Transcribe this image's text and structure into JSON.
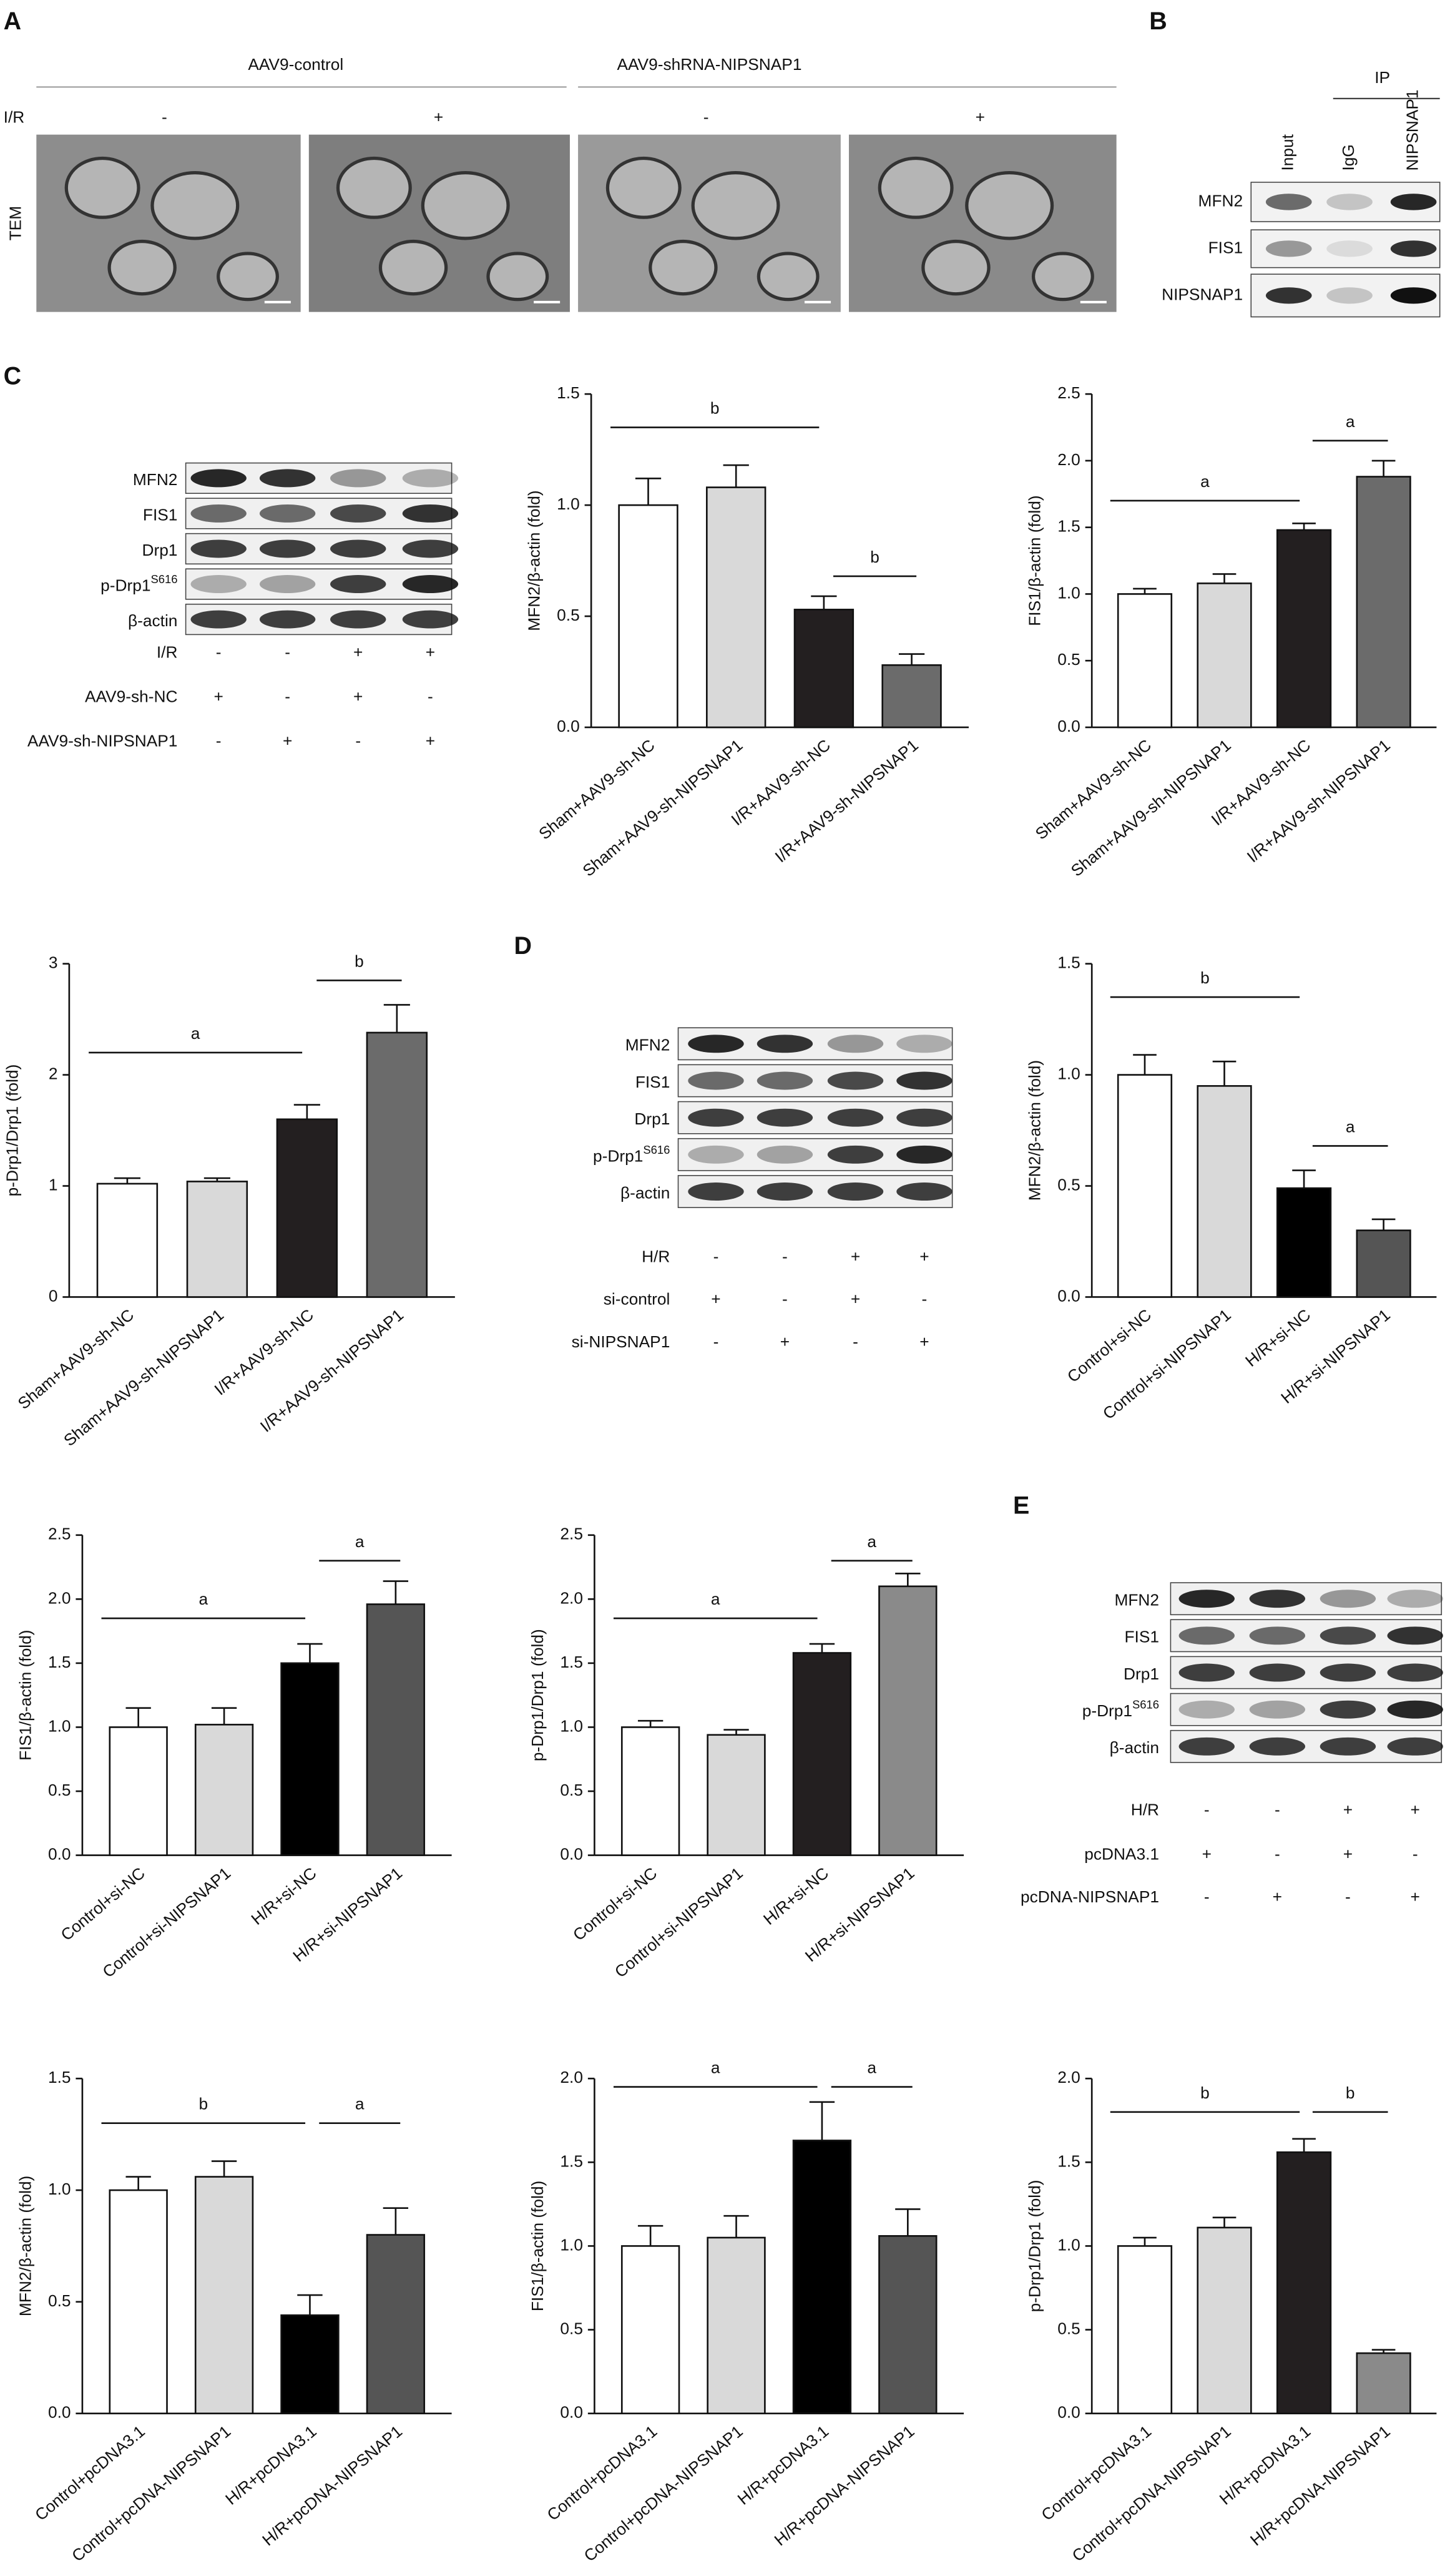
{
  "panel_letters": [
    "A",
    "B",
    "C",
    "D",
    "E"
  ],
  "panel_a": {
    "groups": [
      "AAV9-control",
      "AAV9-shRNA-NIPSNAP1"
    ],
    "row_label": "I/R",
    "signs": [
      "-",
      "+",
      "-",
      "+"
    ],
    "side_label": "TEM"
  },
  "panel_b": {
    "header": "IP",
    "columns": [
      "Input",
      "IgG",
      "NIPSNAP1"
    ],
    "rows": [
      "MFN2",
      "FIS1",
      "NIPSNAP1"
    ]
  },
  "blots": [
    {
      "rows": [
        "MFN2",
        "FIS1",
        "Drp1",
        {
          "text": "p-Drp1",
          "sup": "S616"
        },
        "β-actin"
      ],
      "conditions": [
        {
          "label": "I/R",
          "signs": [
            "-",
            "-",
            "+",
            "+"
          ]
        },
        {
          "label": "AAV9-sh-NC",
          "signs": [
            "+",
            "-",
            "+",
            "-"
          ]
        },
        {
          "label": "AAV9-sh-NIPSNAP1",
          "signs": [
            "-",
            "+",
            "-",
            "+"
          ]
        }
      ]
    },
    {
      "rows": [
        "MFN2",
        "FIS1",
        "Drp1",
        {
          "text": "p-Drp1",
          "sup": "S616"
        },
        "β-actin"
      ],
      "conditions": [
        {
          "label": "H/R",
          "signs": [
            "-",
            "-",
            "+",
            "+"
          ]
        },
        {
          "label": "si-control",
          "signs": [
            "+",
            "-",
            "+",
            "-"
          ]
        },
        {
          "label": "si-NIPSNAP1",
          "signs": [
            "-",
            "+",
            "-",
            "+"
          ]
        }
      ]
    },
    {
      "rows": [
        "MFN2",
        "FIS1",
        "Drp1",
        {
          "text": "p-Drp1",
          "sup": "S616"
        },
        "β-actin"
      ],
      "conditions": [
        {
          "label": "H/R",
          "signs": [
            "-",
            "-",
            "+",
            "+"
          ]
        },
        {
          "label": "pcDNA3.1",
          "signs": [
            "+",
            "-",
            "+",
            "-"
          ]
        },
        {
          "label": "pcDNA-NIPSNAP1",
          "signs": [
            "-",
            "+",
            "-",
            "+"
          ]
        }
      ]
    }
  ],
  "chart_data": [
    {
      "type": "bar",
      "y_label": "MFN2/β-actin (fold)",
      "categories": [
        "Sham+AAV9-sh-NC",
        "Sham+AAV9-sh-NIPSNAP1",
        "I/R+AAV9-sh-NC",
        "I/R+AAV9-sh-NIPSNAP1"
      ],
      "values": [
        1.0,
        1.08,
        0.53,
        0.28
      ],
      "errors": [
        0.12,
        0.1,
        0.06,
        0.05
      ],
      "colors": [
        "#ffffff",
        "#d9d9d9",
        "#231f20",
        "#6b6b6b"
      ],
      "ylim": [
        0,
        1.5
      ],
      "yticks": [
        {
          "value": 0,
          "label": "0.0"
        },
        0.5,
        {
          "value": 1,
          "label": "1.0"
        },
        1.5
      ],
      "annotations": [
        {
          "text": "b",
          "y": 1.35
        },
        {
          "text": "b",
          "y": 0.68
        }
      ]
    },
    {
      "type": "bar",
      "y_label": "FIS1/β-actin (fold)",
      "categories": [
        "Sham+AAV9-sh-NC",
        "Sham+AAV9-sh-NIPSNAP1",
        "I/R+AAV9-sh-NC",
        "I/R+AAV9-sh-NIPSNAP1"
      ],
      "values": [
        1.0,
        1.08,
        1.48,
        1.88
      ],
      "errors": [
        0.04,
        0.07,
        0.05,
        0.12
      ],
      "colors": [
        "#ffffff",
        "#d9d9d9",
        "#231f20",
        "#6b6b6b"
      ],
      "ylim": [
        0,
        2.5
      ],
      "yticks": [
        {
          "value": 0,
          "label": "0.0"
        },
        0.5,
        {
          "value": 1,
          "label": "1.0"
        },
        1.5,
        {
          "value": 2,
          "label": "2.0"
        },
        2.5
      ],
      "annotations": [
        {
          "text": "a",
          "y": 1.7
        },
        {
          "text": "a",
          "y": 2.15
        }
      ]
    },
    {
      "type": "bar",
      "y_label": "p-Drp1/Drp1 (fold)",
      "categories": [
        "Sham+AAV9-sh-NC",
        "Sham+AAV9-sh-NIPSNAP1",
        "I/R+AAV9-sh-NC",
        "I/R+AAV9-sh-NIPSNAP1"
      ],
      "values": [
        1.02,
        1.04,
        1.6,
        2.38
      ],
      "errors": [
        0.05,
        0.03,
        0.13,
        0.25
      ],
      "colors": [
        "#ffffff",
        "#d9d9d9",
        "#231f20",
        "#6b6b6b"
      ],
      "ylim": [
        0,
        3
      ],
      "yticks": [
        0,
        1,
        2,
        3
      ],
      "annotations": [
        {
          "text": "a",
          "y": 2.2
        },
        {
          "text": "b",
          "y": 2.85
        }
      ]
    },
    {
      "type": "bar",
      "y_label": "MFN2/β-actin (fold)",
      "categories": [
        "Control+si-NC",
        "Control+si-NIPSNAP1",
        "H/R+si-NC",
        "H/R+si-NIPSNAP1"
      ],
      "values": [
        1.0,
        0.95,
        0.49,
        0.3
      ],
      "errors": [
        0.09,
        0.11,
        0.08,
        0.05
      ],
      "colors": [
        "#ffffff",
        "#d9d9d9",
        "#000000",
        "#555555"
      ],
      "ylim": [
        0,
        1.5
      ],
      "yticks": [
        {
          "value": 0,
          "label": "0.0"
        },
        0.5,
        {
          "value": 1,
          "label": "1.0"
        },
        1.5
      ],
      "annotations": [
        {
          "text": "b",
          "y": 1.35
        },
        {
          "text": "a",
          "y": 0.68
        }
      ]
    },
    {
      "type": "bar",
      "y_label": "FIS1/β-actin (fold)",
      "categories": [
        "Control+si-NC",
        "Control+si-NIPSNAP1",
        "H/R+si-NC",
        "H/R+si-NIPSNAP1"
      ],
      "values": [
        1.0,
        1.02,
        1.5,
        1.96
      ],
      "errors": [
        0.15,
        0.13,
        0.15,
        0.18
      ],
      "colors": [
        "#ffffff",
        "#d9d9d9",
        "#000000",
        "#555555"
      ],
      "ylim": [
        0,
        2.5
      ],
      "yticks": [
        {
          "value": 0,
          "label": "0.0"
        },
        0.5,
        {
          "value": 1,
          "label": "1.0"
        },
        1.5,
        {
          "value": 2,
          "label": "2.0"
        },
        2.5
      ],
      "annotations": [
        {
          "text": "a",
          "y": 1.85
        },
        {
          "text": "a",
          "y": 2.3
        }
      ]
    },
    {
      "type": "bar",
      "y_label": "p-Drp1/Drp1 (fold)",
      "categories": [
        "Control+si-NC",
        "Control+si-NIPSNAP1",
        "H/R+si-NC",
        "H/R+si-NIPSNAP1"
      ],
      "values": [
        1.0,
        0.94,
        1.58,
        2.1
      ],
      "errors": [
        0.05,
        0.04,
        0.07,
        0.1
      ],
      "colors": [
        "#ffffff",
        "#d9d9d9",
        "#231f20",
        "#8a8a8a"
      ],
      "ylim": [
        0,
        2.5
      ],
      "yticks": [
        {
          "value": 0,
          "label": "0.0"
        },
        0.5,
        {
          "value": 1,
          "label": "1.0"
        },
        1.5,
        {
          "value": 2,
          "label": "2.0"
        },
        2.5
      ],
      "annotations": [
        {
          "text": "a",
          "y": 1.85
        },
        {
          "text": "a",
          "y": 2.3
        }
      ]
    },
    {
      "type": "bar",
      "y_label": "MFN2/β-actin (fold)",
      "categories": [
        "Control+pcDNA3.1",
        "Control+pcDNA-NIPSNAP1",
        "H/R+pcDNA3.1",
        "H/R+pcDNA-NIPSNAP1"
      ],
      "values": [
        1.0,
        1.06,
        0.44,
        0.8
      ],
      "errors": [
        0.06,
        0.07,
        0.09,
        0.12
      ],
      "colors": [
        "#ffffff",
        "#d9d9d9",
        "#000000",
        "#555555"
      ],
      "ylim": [
        0,
        1.5
      ],
      "yticks": [
        {
          "value": 0,
          "label": "0.0"
        },
        0.5,
        {
          "value": 1,
          "label": "1.0"
        },
        1.5
      ],
      "annotations": [
        {
          "text": "b",
          "y": 1.3
        },
        {
          "text": "a",
          "y": 1.3
        }
      ]
    },
    {
      "type": "bar",
      "y_label": "FIS1/β-actin (fold)",
      "categories": [
        "Control+pcDNA3.1",
        "Control+pcDNA-NIPSNAP1",
        "H/R+pcDNA3.1",
        "H/R+pcDNA-NIPSNAP1"
      ],
      "values": [
        1.0,
        1.05,
        1.63,
        1.06
      ],
      "errors": [
        0.12,
        0.13,
        0.23,
        0.16
      ],
      "colors": [
        "#ffffff",
        "#d9d9d9",
        "#000000",
        "#555555"
      ],
      "ylim": [
        0,
        2
      ],
      "yticks": [
        {
          "value": 0,
          "label": "0.0"
        },
        0.5,
        {
          "value": 1,
          "label": "1.0"
        },
        1.5,
        {
          "value": 2,
          "label": "2.0"
        }
      ],
      "annotations": [
        {
          "text": "a",
          "y": 1.95
        },
        {
          "text": "a",
          "y": 1.95
        }
      ]
    },
    {
      "type": "bar",
      "y_label": "p-Drp1/Drp1 (fold)",
      "categories": [
        "Control+pcDNA3.1",
        "Control+pcDNA-NIPSNAP1",
        "H/R+pcDNA3.1",
        "H/R+pcDNA-NIPSNAP1"
      ],
      "values": [
        1.0,
        1.11,
        1.56,
        0.36
      ],
      "errors": [
        0.05,
        0.06,
        0.08,
        0.02
      ],
      "colors": [
        "#ffffff",
        "#d9d9d9",
        "#231f20",
        "#8a8a8a"
      ],
      "ylim": [
        0,
        2
      ],
      "yticks": [
        {
          "value": 0,
          "label": "0.0"
        },
        0.5,
        {
          "value": 1,
          "label": "1.0"
        },
        1.5,
        {
          "value": 2,
          "label": "2.0"
        }
      ],
      "annotations": [
        {
          "text": "b",
          "y": 1.8
        },
        {
          "text": "b",
          "y": 1.8
        }
      ]
    }
  ]
}
